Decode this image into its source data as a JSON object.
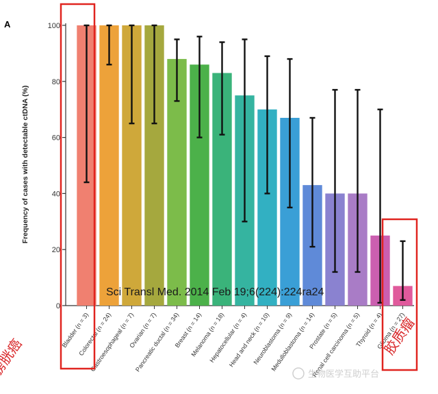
{
  "chart_data": {
    "type": "bar",
    "panel_label": "A",
    "ylabel": "Frequency of cases with detectable ctDNA (%)",
    "ylim": [
      0,
      100
    ],
    "yticks": [
      0,
      20,
      40,
      60,
      80,
      100
    ],
    "grid": false,
    "categories": [
      "Bladder (n = 3)",
      "Colorectal (n = 24)",
      "Gastroesophageal (n = 7)",
      "Ovarian (n = 7)",
      "Pancreatic ductal (n = 34)",
      "Breast (n = 14)",
      "Melanoma (n = 18)",
      "Hepatocellular (n = 4)",
      "Head and neck (n = 10)",
      "Neuroblastoma (n = 9)",
      "Medulloblastoma (n = 14)",
      "Prostate (n = 5)",
      "Renal cell carcinoma (n = 5)",
      "Thyroid (n = 4)",
      "Glioma (n = 27)"
    ],
    "values": [
      100,
      100,
      100,
      100,
      88,
      86,
      83,
      75,
      70,
      67,
      43,
      40,
      40,
      25,
      7
    ],
    "error_low": [
      44,
      86,
      65,
      65,
      73,
      60,
      61,
      30,
      40,
      35,
      21,
      12,
      12,
      1,
      2
    ],
    "error_high": [
      100,
      100,
      100,
      100,
      95,
      96,
      94,
      95,
      89,
      88,
      67,
      77,
      77,
      70,
      23
    ],
    "colors": [
      "#f08070",
      "#eda23a",
      "#cfa83a",
      "#a5a83e",
      "#7cbc4a",
      "#4cb14a",
      "#3ab37a",
      "#35b4a0",
      "#32b0c2",
      "#3a9fd6",
      "#5f8ad8",
      "#8a82d0",
      "#a97cc6",
      "#cb5fb0",
      "#e05a9c"
    ],
    "annotation": "Sci Transl Med. 2014 Feb 19;6(224):224ra24",
    "highlights": [
      {
        "category_index": 0,
        "label": "膀胱癌"
      },
      {
        "category_index": 14,
        "label": "胶质瘤"
      }
    ]
  },
  "watermark": "生物医学互助平台"
}
